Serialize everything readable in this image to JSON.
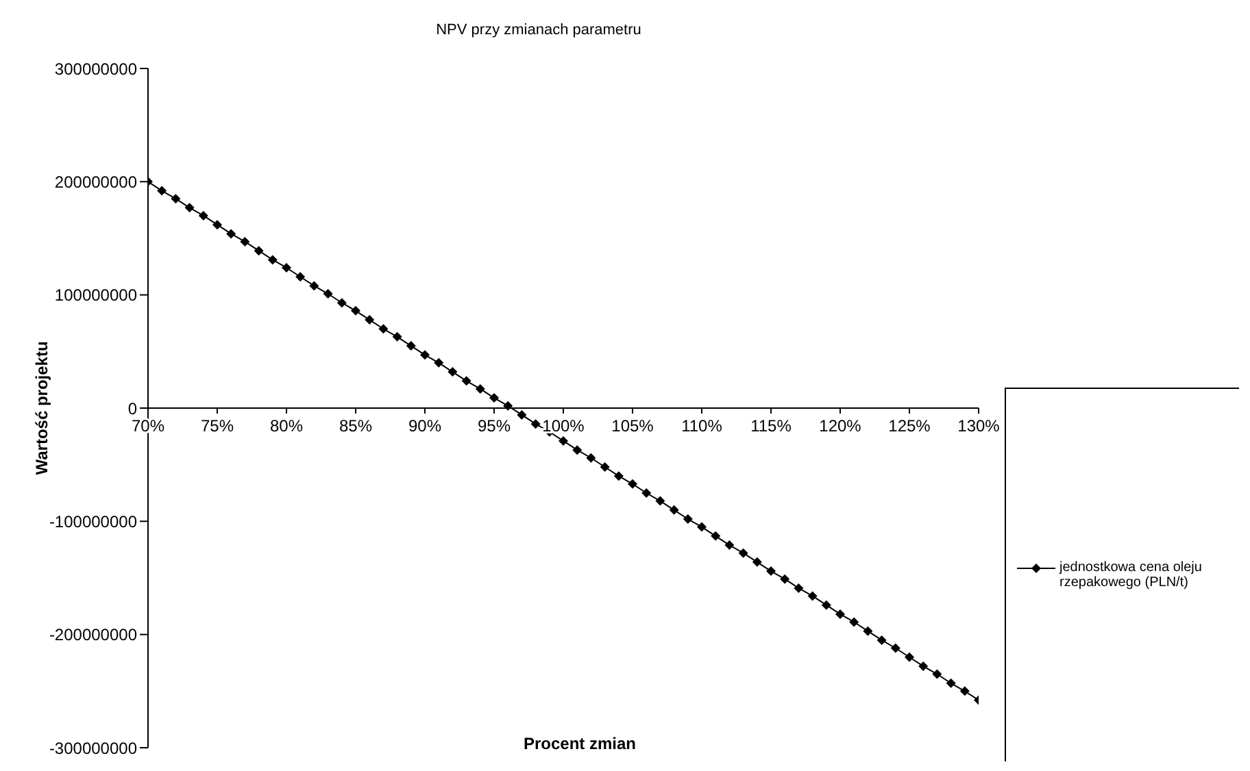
{
  "chart_data": {
    "type": "line",
    "title": "NPV przy zmianach parametru",
    "xlabel": "Procent zmian",
    "ylabel": "Wartość projektu",
    "x": [
      70,
      71,
      72,
      73,
      74,
      75,
      76,
      77,
      78,
      79,
      80,
      81,
      82,
      83,
      84,
      85,
      86,
      87,
      88,
      89,
      90,
      91,
      92,
      93,
      94,
      95,
      96,
      97,
      98,
      99,
      100,
      101,
      102,
      103,
      104,
      105,
      106,
      107,
      108,
      109,
      110,
      111,
      112,
      113,
      114,
      115,
      116,
      117,
      118,
      119,
      120,
      121,
      122,
      123,
      124,
      125,
      126,
      127,
      128,
      129,
      130
    ],
    "series": [
      {
        "name": "jednostkowa cena oleju rzepakowego (PLN/t)",
        "color": "#000000",
        "values": [
          200000000,
          192000000,
          185000000,
          177000000,
          170000000,
          162000000,
          154000000,
          147000000,
          139000000,
          131000000,
          124000000,
          116000000,
          108000000,
          101000000,
          93000000,
          86000000,
          78000000,
          70000000,
          63000000,
          55000000,
          47000000,
          40000000,
          32000000,
          24000000,
          17000000,
          9000000,
          2000000,
          -6000000,
          -14000000,
          -21000000,
          -29000000,
          -37000000,
          -44000000,
          -52000000,
          -60000000,
          -67000000,
          -75000000,
          -82000000,
          -90000000,
          -98000000,
          -105000000,
          -113000000,
          -121000000,
          -128000000,
          -136000000,
          -144000000,
          -151000000,
          -159000000,
          -166000000,
          -174000000,
          -182000000,
          -189000000,
          -197000000,
          -205000000,
          -212000000,
          -220000000,
          -228000000,
          -235000000,
          -243000000,
          -250000000,
          -258000000
        ]
      }
    ],
    "xlim": [
      70,
      130
    ],
    "xticks": [
      {
        "value": 70,
        "label": "70%"
      },
      {
        "value": 75,
        "label": "75%"
      },
      {
        "value": 80,
        "label": "80%"
      },
      {
        "value": 85,
        "label": "85%"
      },
      {
        "value": 90,
        "label": "90%"
      },
      {
        "value": 95,
        "label": "95%"
      },
      {
        "value": 100,
        "label": "100%"
      },
      {
        "value": 105,
        "label": "105%"
      },
      {
        "value": 110,
        "label": "110%"
      },
      {
        "value": 115,
        "label": "115%"
      },
      {
        "value": 120,
        "label": "120%"
      },
      {
        "value": 125,
        "label": "125%"
      },
      {
        "value": 130,
        "label": "130%"
      }
    ],
    "ylim": [
      -300000000,
      300000000
    ],
    "yticks": [
      -300000000,
      -200000000,
      -100000000,
      0,
      100000000,
      200000000,
      300000000
    ],
    "grid": false,
    "legend": "right",
    "marker": "diamond",
    "line_style": "solid"
  }
}
